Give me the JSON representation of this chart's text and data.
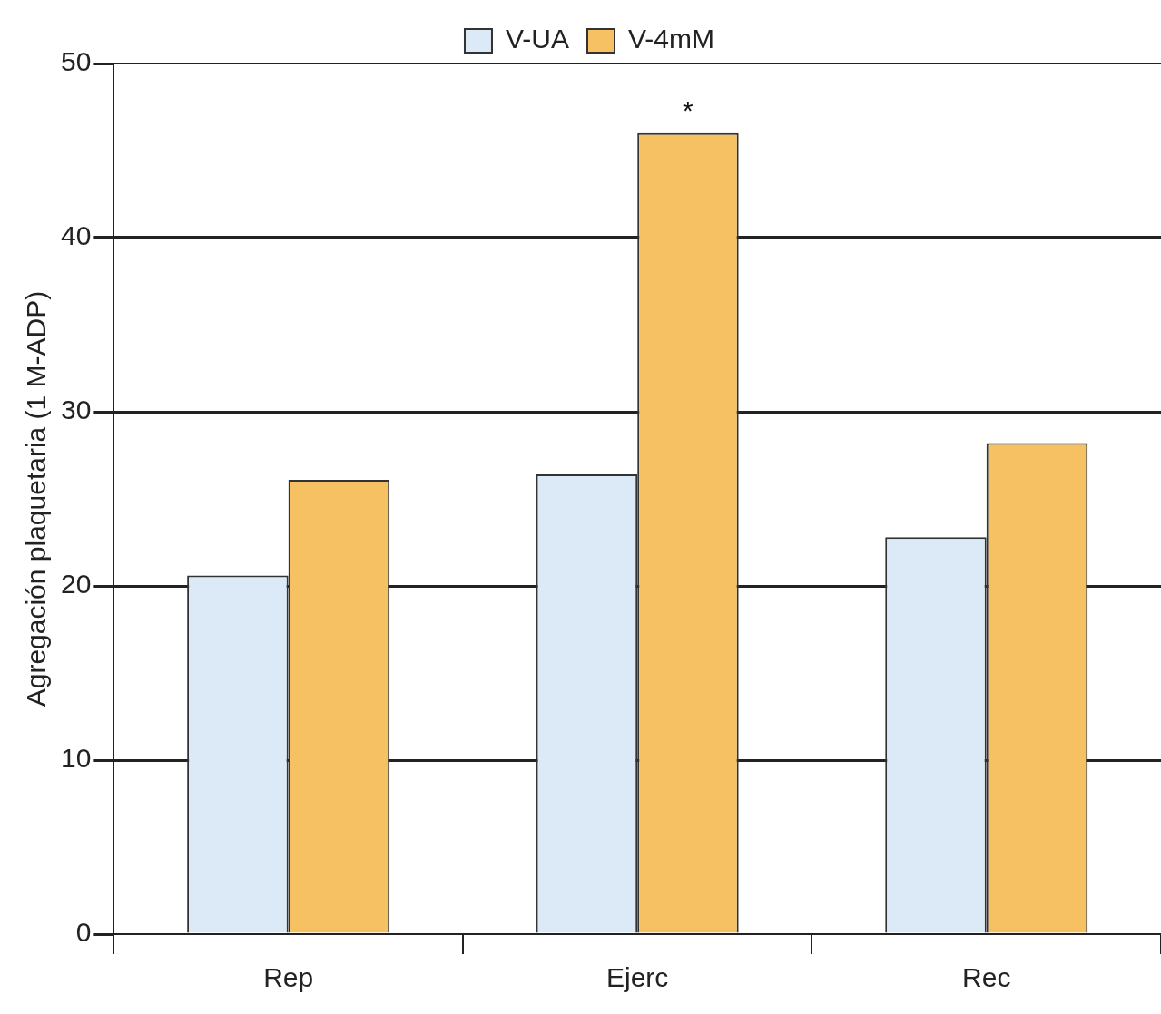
{
  "chart_data": {
    "type": "bar",
    "ylabel": "Agregación plaquetaria (1 M-ADP)",
    "categories": [
      "Rep",
      "Ejerc",
      "Rec"
    ],
    "series": [
      {
        "name": "V-UA",
        "color": "#dce9f6",
        "values": [
          20.6,
          26.4,
          22.8
        ]
      },
      {
        "name": "V-4mM",
        "color": "#f5c162",
        "values": [
          26.1,
          46.0,
          28.2
        ]
      }
    ],
    "ylim": [
      0,
      50
    ],
    "yticks": [
      0,
      10,
      20,
      30,
      40,
      50
    ],
    "grid": "y",
    "legend": "top",
    "annotations": [
      {
        "text": "*",
        "x": "Ejerc",
        "y": 46.0
      }
    ]
  }
}
